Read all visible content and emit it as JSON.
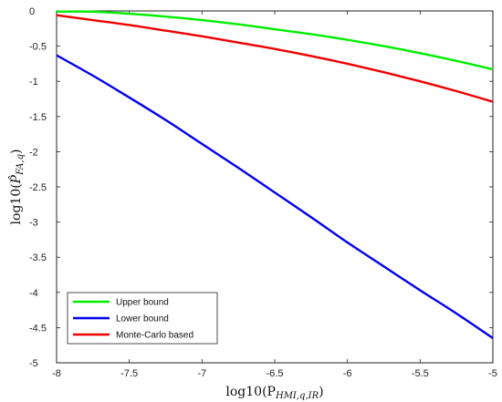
{
  "chart_data": {
    "type": "line",
    "xlabel": "log10(P",
    "xlabel_sub": "HMI,q,IR",
    "xlabel_end": ")",
    "ylabel": "log10(",
    "ylabel_var": "P̂",
    "ylabel_sub": "FA,q",
    "ylabel_end": ")",
    "xlim": [
      -8,
      -5
    ],
    "ylim": [
      -5,
      0
    ],
    "xticks": [
      -8,
      -7.5,
      -7,
      -6.5,
      -6,
      -5.5,
      -5
    ],
    "xtick_labels": [
      "-8",
      "-7.5",
      "-7",
      "-6.5",
      "-6",
      "-5.5",
      "-5"
    ],
    "yticks": [
      0,
      -0.5,
      -1,
      -1.5,
      -2,
      -2.5,
      -3,
      -3.5,
      -4,
      -4.5,
      -5
    ],
    "ytick_labels": [
      "0",
      "-0.5",
      "-1",
      "-1.5",
      "-2",
      "-2.5",
      "-3",
      "-3.5",
      "-4",
      "-4.5",
      "-5"
    ],
    "grid": false,
    "legend_position": "bottom-left",
    "series": [
      {
        "name": "Upper bound",
        "color": "#00ee00",
        "x": [
          -8,
          -7.75,
          -7.5,
          -7.25,
          -7,
          -6.75,
          -6.5,
          -6.25,
          -6,
          -5.75,
          -5.5,
          -5.25,
          -5
        ],
        "y": [
          -0.01,
          -0.01,
          -0.04,
          -0.08,
          -0.13,
          -0.19,
          -0.26,
          -0.33,
          -0.41,
          -0.5,
          -0.6,
          -0.71,
          -0.83
        ]
      },
      {
        "name": "Lower bound",
        "color": "#0000ee",
        "x": [
          -8,
          -7.75,
          -7.5,
          -7.25,
          -7,
          -6.75,
          -6.5,
          -6.25,
          -6,
          -5.75,
          -5.5,
          -5.25,
          -5
        ],
        "y": [
          -0.63,
          -0.92,
          -1.23,
          -1.55,
          -1.89,
          -2.23,
          -2.58,
          -2.93,
          -3.29,
          -3.63,
          -3.97,
          -4.3,
          -4.65
        ]
      },
      {
        "name": "Monte-Carlo based",
        "color": "#ee0000",
        "x": [
          -8,
          -7.75,
          -7.5,
          -7.25,
          -7,
          -6.75,
          -6.5,
          -6.25,
          -6,
          -5.75,
          -5.5,
          -5.25,
          -5
        ],
        "y": [
          -0.06,
          -0.13,
          -0.2,
          -0.28,
          -0.36,
          -0.45,
          -0.54,
          -0.64,
          -0.75,
          -0.87,
          -1.0,
          -1.14,
          -1.29
        ]
      }
    ]
  }
}
